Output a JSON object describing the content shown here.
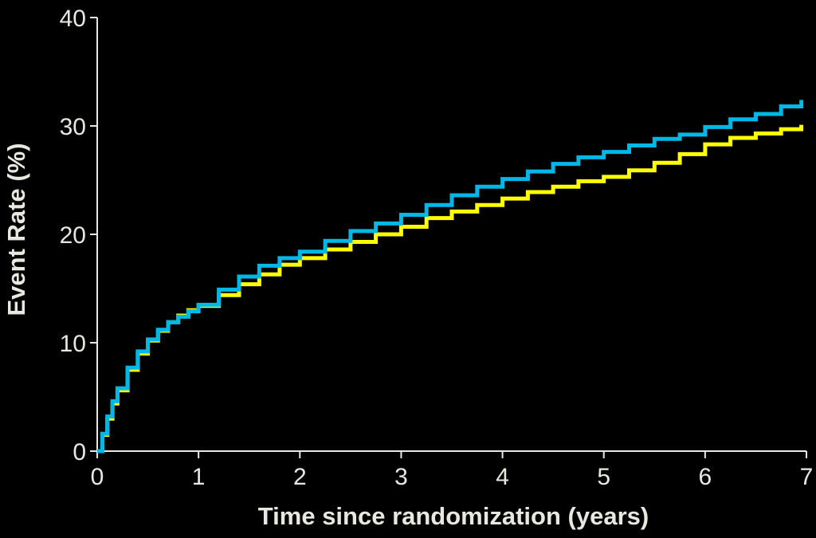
{
  "chart_data": {
    "type": "line",
    "title": "",
    "xlabel": "Time since randomization (years)",
    "ylabel": "Event Rate (%)",
    "xlim": [
      0,
      7
    ],
    "ylim": [
      0,
      40
    ],
    "x_ticks": [
      "0",
      "1",
      "2",
      "3",
      "4",
      "5",
      "6",
      "7"
    ],
    "y_ticks": [
      "0",
      "10",
      "20",
      "30",
      "40"
    ],
    "grid": false,
    "legend": "none",
    "step": true,
    "series": [
      {
        "color": "#ffff00",
        "x": [
          0,
          0.05,
          0.1,
          0.15,
          0.2,
          0.3,
          0.4,
          0.5,
          0.6,
          0.7,
          0.8,
          0.9,
          1.0,
          1.2,
          1.4,
          1.6,
          1.8,
          2.0,
          2.25,
          2.5,
          2.75,
          3.0,
          3.25,
          3.5,
          3.75,
          4.0,
          4.25,
          4.5,
          4.75,
          5.0,
          5.25,
          5.5,
          5.75,
          6.0,
          6.25,
          6.5,
          6.75,
          6.95
        ],
        "values": [
          0,
          1.5,
          3.0,
          4.4,
          5.6,
          7.5,
          9.0,
          10.2,
          11.1,
          11.9,
          12.5,
          13.0,
          13.4,
          14.4,
          15.4,
          16.3,
          17.2,
          17.8,
          18.6,
          19.3,
          20.0,
          20.7,
          21.5,
          22.1,
          22.7,
          23.3,
          23.9,
          24.4,
          24.9,
          25.3,
          25.9,
          26.6,
          27.4,
          28.3,
          28.9,
          29.3,
          29.7,
          30.1
        ]
      },
      {
        "color": "#00b8e8",
        "x": [
          0,
          0.05,
          0.1,
          0.15,
          0.2,
          0.3,
          0.4,
          0.5,
          0.6,
          0.7,
          0.8,
          0.9,
          1.0,
          1.2,
          1.4,
          1.6,
          1.8,
          2.0,
          2.25,
          2.5,
          2.75,
          3.0,
          3.25,
          3.5,
          3.75,
          4.0,
          4.25,
          4.5,
          4.75,
          5.0,
          5.25,
          5.5,
          5.75,
          6.0,
          6.25,
          6.5,
          6.75,
          6.95
        ],
        "values": [
          0,
          1.6,
          3.2,
          4.6,
          5.8,
          7.7,
          9.2,
          10.3,
          11.2,
          11.9,
          12.4,
          12.9,
          13.5,
          14.9,
          16.1,
          17.1,
          17.8,
          18.4,
          19.4,
          20.3,
          21.0,
          21.8,
          22.7,
          23.6,
          24.4,
          25.1,
          25.8,
          26.5,
          27.1,
          27.6,
          28.2,
          28.8,
          29.2,
          29.9,
          30.6,
          31.1,
          31.8,
          32.4
        ]
      }
    ]
  }
}
